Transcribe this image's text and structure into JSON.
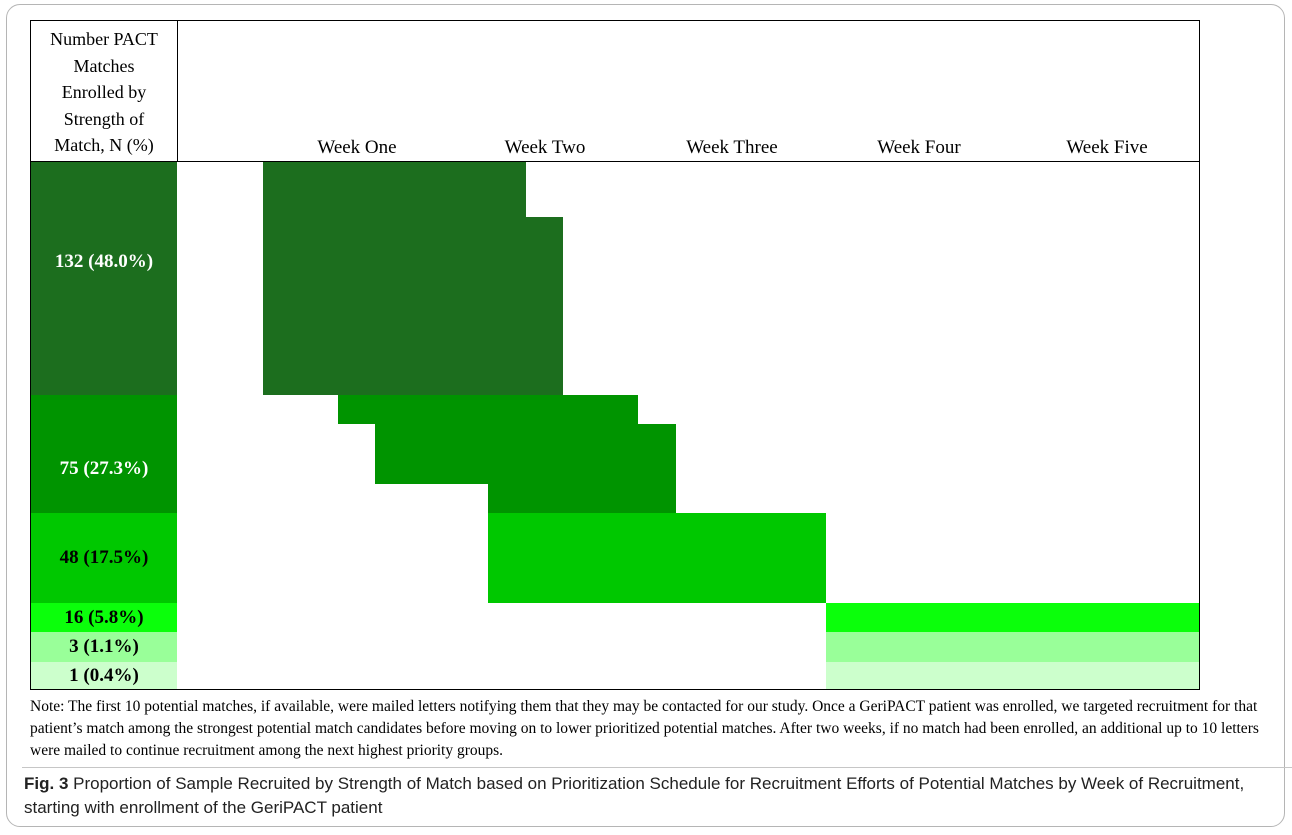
{
  "figure": {
    "corner_header": "Number PACT\nMatches\nEnrolled by\nStrength of\nMatch, N (%)",
    "weeks": [
      "Week One",
      "Week Two",
      "Week Three",
      "Week Four",
      "Week Five"
    ],
    "rows": [
      {
        "label": "132 (48.0%)",
        "color": "#1c6e1e"
      },
      {
        "label": "75 (27.3%)",
        "color": "#009400"
      },
      {
        "label": "48 (17.5%)",
        "color": "#00c800"
      },
      {
        "label": "16 (5.8%)",
        "color": "#0bff0b"
      },
      {
        "label": "3 (1.1%)",
        "color": "#99ff99"
      },
      {
        "label": "1 (0.4%)",
        "color": "#ccffcc"
      }
    ],
    "note": "Note: The first 10 potential matches, if available, were mailed letters notifying them that they may be contacted for our study. Once a GeriPACT patient was enrolled, we targeted recruitment for that patient’s match among the strongest potential match candidates before moving on to lower prioritized potential matches. After two weeks, if no match had been enrolled, an additional up to 10 letters were mailed to continue recruitment among the next highest priority groups.",
    "caption_label": "Fig. 3",
    "caption_text": " Proportion of Sample Recruited by Strength of Match based on Prioritization Schedule for Recruitment Efforts of Potential Matches by Week of Recruitment, starting with enrollment of the GeriPACT patient"
  }
}
